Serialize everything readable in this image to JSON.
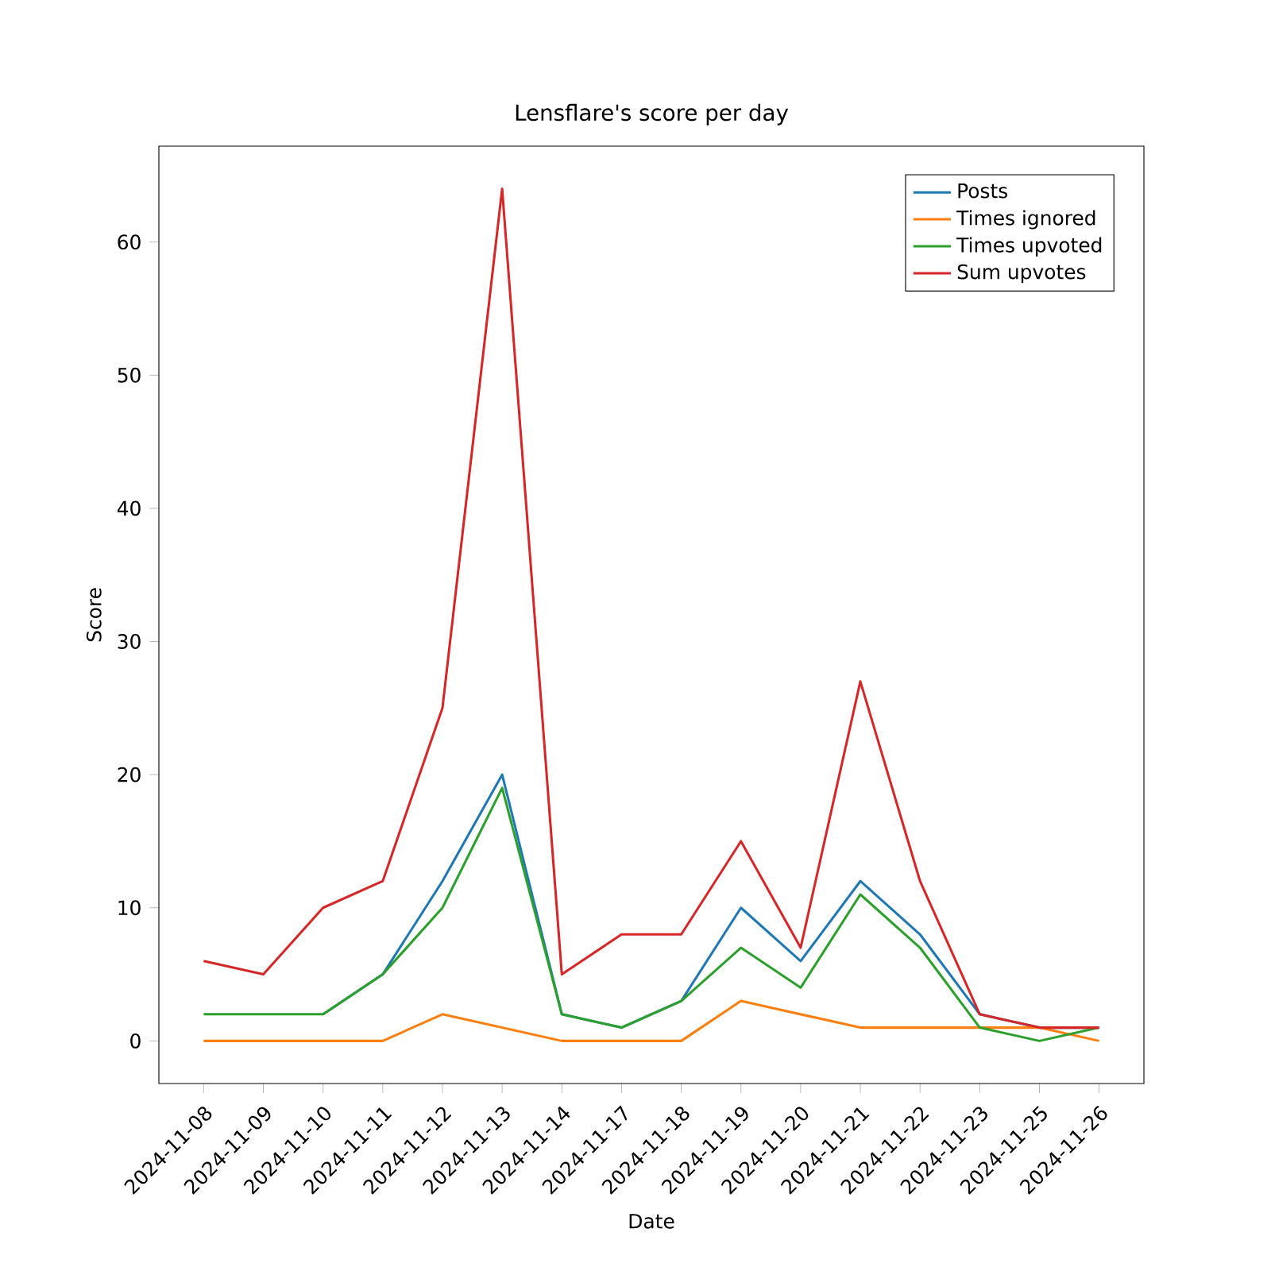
{
  "chart_data": {
    "type": "line",
    "title": "Lensflare's score per day",
    "xlabel": "Date",
    "ylabel": "Score",
    "categories": [
      "2024-11-08",
      "2024-11-09",
      "2024-11-10",
      "2024-11-11",
      "2024-11-12",
      "2024-11-13",
      "2024-11-14",
      "2024-11-17",
      "2024-11-18",
      "2024-11-19",
      "2024-11-20",
      "2024-11-21",
      "2024-11-22",
      "2024-11-23",
      "2024-11-25",
      "2024-11-26"
    ],
    "series": [
      {
        "name": "Posts",
        "color": "#1f77b4",
        "values": [
          null,
          null,
          2,
          5,
          12,
          20,
          2,
          1,
          3,
          10,
          6,
          12,
          8,
          2,
          1,
          1
        ]
      },
      {
        "name": "Times ignored",
        "color": "#ff7f0e",
        "values": [
          0,
          0,
          0,
          0,
          2,
          1,
          0,
          0,
          0,
          3,
          2,
          1,
          1,
          1,
          1,
          0
        ]
      },
      {
        "name": "Times upvoted",
        "color": "#2ca02c",
        "values": [
          2,
          2,
          2,
          5,
          10,
          19,
          2,
          1,
          3,
          7,
          4,
          11,
          7,
          1,
          0,
          1
        ]
      },
      {
        "name": "Sum upvotes",
        "color": "#d62728",
        "values": [
          6,
          5,
          10,
          12,
          25,
          64,
          5,
          8,
          8,
          15,
          7,
          27,
          12,
          2,
          1,
          1
        ]
      }
    ],
    "ylim": [
      -3.2,
      67.2
    ],
    "yticks": [
      0,
      10,
      20,
      30,
      40,
      50,
      60
    ],
    "legend": "top right",
    "marker": "none",
    "line_style": "solid"
  }
}
